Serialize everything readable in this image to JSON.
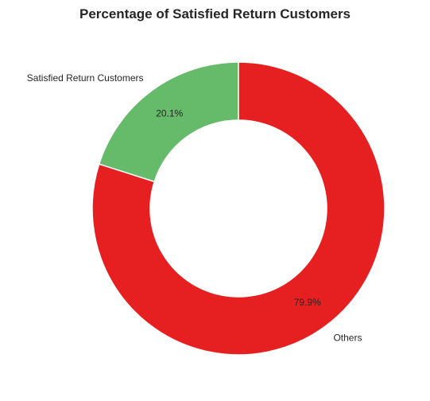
{
  "chart_data": {
    "type": "pie",
    "title": "Percentage of Satisfied Return Customers",
    "categories": [
      "Satisfied Return Customers",
      "Others"
    ],
    "values": [
      20.1,
      79.9
    ],
    "value_labels": [
      "20.1%",
      "79.9%"
    ],
    "colors": [
      "#66bb6a",
      "#e62020"
    ],
    "donut": true,
    "start_angle_deg": 90,
    "direction": "counterclockwise",
    "legend": "none"
  }
}
